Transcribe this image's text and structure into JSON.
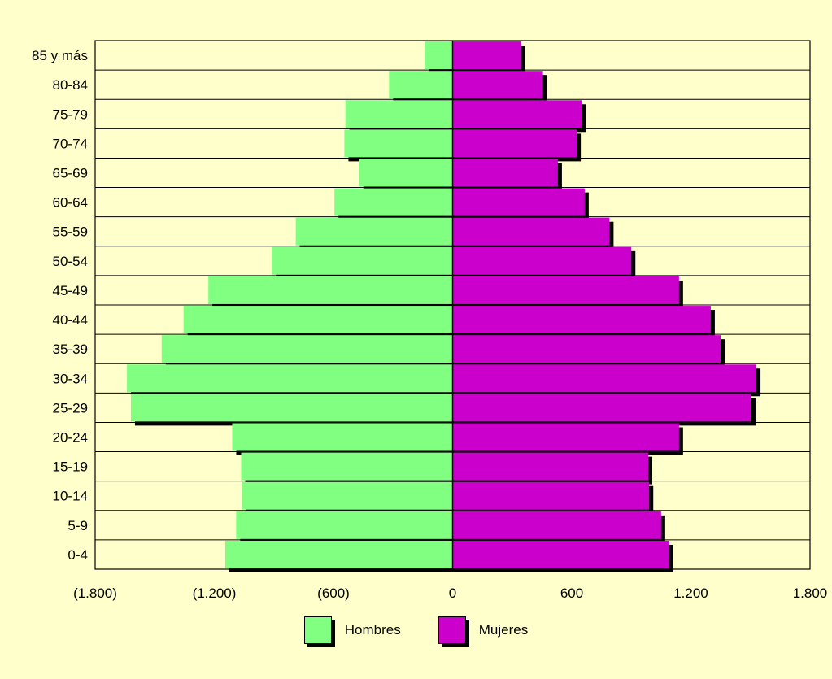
{
  "chart_data": {
    "type": "bar",
    "orientation": "horizontal",
    "layout": "population-pyramid",
    "categories": [
      "85 y más",
      "80-84",
      "75-79",
      "70-74",
      "65-69",
      "60-64",
      "55-59",
      "50-54",
      "45-49",
      "40-44",
      "35-39",
      "30-34",
      "25-29",
      "20-24",
      "15-19",
      "10-14",
      "5-9",
      "0-4"
    ],
    "series": [
      {
        "name": "Hombres",
        "color": "#80ff80",
        "values": [
          140,
          320,
          540,
          545,
          470,
          595,
          790,
          910,
          1230,
          1355,
          1465,
          1640,
          1620,
          1110,
          1065,
          1060,
          1090,
          1145
        ]
      },
      {
        "name": "Mujeres",
        "color": "#cc00cc",
        "values": [
          345,
          455,
          650,
          625,
          530,
          665,
          790,
          900,
          1140,
          1300,
          1350,
          1530,
          1505,
          1140,
          985,
          990,
          1050,
          1090
        ]
      }
    ],
    "xlim": [
      -1800,
      1800
    ],
    "x_ticks": [
      {
        "value": -1800,
        "label": "(1.800)"
      },
      {
        "value": -1200,
        "label": "(1.200)"
      },
      {
        "value": -600,
        "label": "(600)"
      },
      {
        "value": 0,
        "label": "0"
      },
      {
        "value": 600,
        "label": "600"
      },
      {
        "value": 1200,
        "label": "1.200"
      },
      {
        "value": 1800,
        "label": "1.800"
      }
    ],
    "grid": "horizontal",
    "legend_position": "bottom",
    "plot_background": "#ffffcc"
  }
}
